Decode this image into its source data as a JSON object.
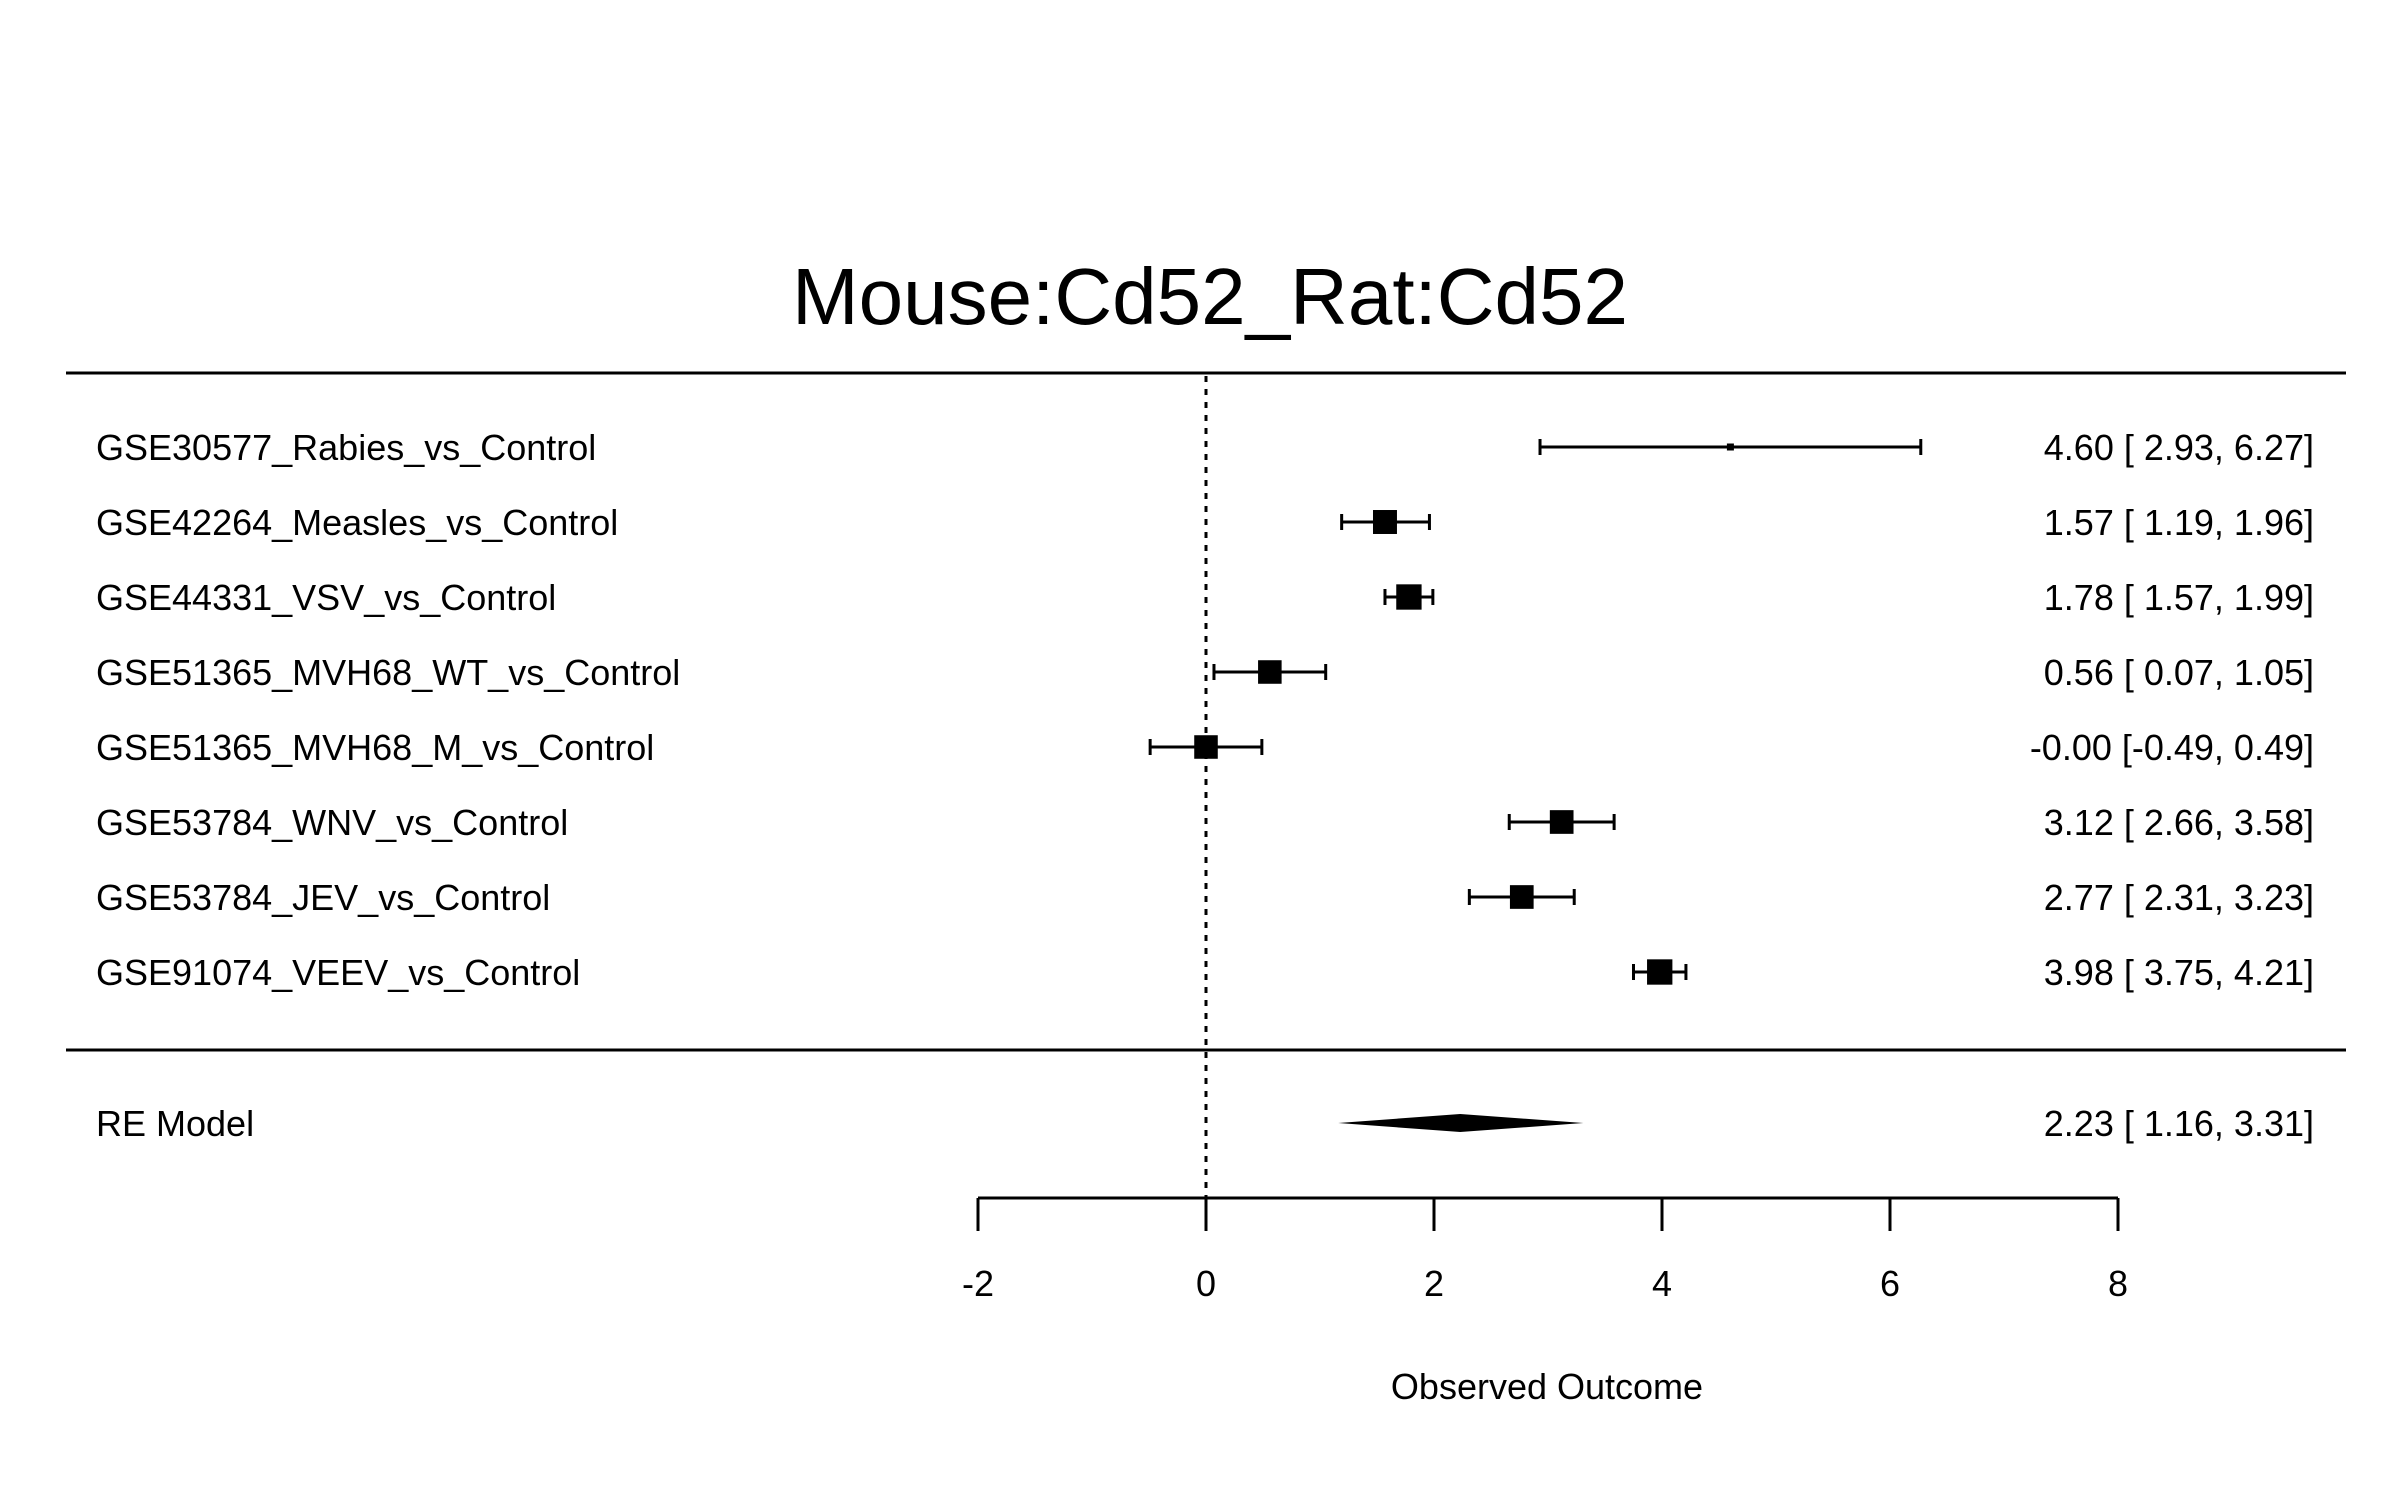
{
  "chart_data": {
    "type": "forest",
    "title": "Mouse:Cd52_Rat:Cd52",
    "xlabel": "Observed Outcome",
    "xlim": [
      -2,
      8
    ],
    "xticks": [
      "-2",
      "0",
      "2",
      "4",
      "6",
      "8"
    ],
    "reference_line": 0,
    "studies": [
      {
        "label": "GSE30577_Rabies_vs_Control",
        "estimate": 4.6,
        "lower": 2.93,
        "upper": 6.27,
        "text": "4.60 [ 2.93, 6.27]",
        "weight": 0.06
      },
      {
        "label": "GSE42264_Measles_vs_Control",
        "estimate": 1.57,
        "lower": 1.19,
        "upper": 1.96,
        "text": "1.57 [ 1.19, 1.96]",
        "weight": 0.85
      },
      {
        "label": "GSE44331_VSV_vs_Control",
        "estimate": 1.78,
        "lower": 1.57,
        "upper": 1.99,
        "text": "1.78 [ 1.57, 1.99]",
        "weight": 0.95
      },
      {
        "label": "GSE51365_MVH68_WT_vs_Control",
        "estimate": 0.56,
        "lower": 0.07,
        "upper": 1.05,
        "text": "0.56 [ 0.07, 1.05]",
        "weight": 0.82
      },
      {
        "label": "GSE51365_MVH68_M_vs_Control",
        "estimate": -0.0,
        "lower": -0.49,
        "upper": 0.49,
        "text": "-0.00 [-0.49, 0.49]",
        "weight": 0.82
      },
      {
        "label": "GSE53784_WNV_vs_Control",
        "estimate": 3.12,
        "lower": 2.66,
        "upper": 3.58,
        "text": "3.12 [ 2.66, 3.58]",
        "weight": 0.83
      },
      {
        "label": "GSE53784_JEV_vs_Control",
        "estimate": 2.77,
        "lower": 2.31,
        "upper": 3.23,
        "text": "2.77 [ 2.31, 3.23]",
        "weight": 0.83
      },
      {
        "label": "GSE91074_VEEV_vs_Control",
        "estimate": 3.98,
        "lower": 3.75,
        "upper": 4.21,
        "text": "3.98 [ 3.75, 4.21]",
        "weight": 0.95
      }
    ],
    "summary": {
      "label": "RE Model",
      "estimate": 2.23,
      "lower": 1.16,
      "upper": 3.31,
      "text": "2.23 [ 1.16, 3.31]"
    }
  }
}
